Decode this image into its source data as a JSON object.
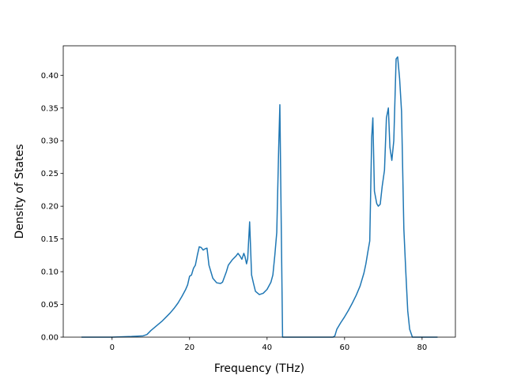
{
  "chart_data": {
    "type": "line",
    "title": "",
    "xlabel": "Frequency (THz)",
    "ylabel": "Density of States",
    "xlim": [
      -12.6,
      88.6
    ],
    "ylim": [
      0,
      0.445
    ],
    "xticks": [
      0,
      20,
      40,
      60,
      80
    ],
    "xtick_labels": [
      "0",
      "20",
      "40",
      "60",
      "80"
    ],
    "yticks": [
      0,
      0.05,
      0.1,
      0.15,
      0.2,
      0.25,
      0.3,
      0.35,
      0.4
    ],
    "ytick_labels": [
      "0.00",
      "0.05",
      "0.10",
      "0.15",
      "0.20",
      "0.25",
      "0.30",
      "0.35",
      "0.40"
    ],
    "grid": false,
    "legend": "none",
    "series": [
      {
        "color": "#1f77b4",
        "x": [
          -7.9,
          0,
          5,
          8,
          9,
          10,
          11,
          12,
          13,
          14,
          15,
          16,
          17,
          18,
          19,
          19.5,
          20,
          20.5,
          21,
          21.5,
          22,
          22.5,
          23,
          23.5,
          24,
          24.5,
          25,
          26,
          27,
          28,
          28.5,
          29,
          29.5,
          30,
          31,
          32,
          32.5,
          33,
          33.5,
          34,
          34.3,
          34.7,
          35,
          35.5,
          36,
          36.5,
          37,
          38,
          39,
          40,
          41,
          41.5,
          42,
          42.5,
          43,
          43.3,
          43.5,
          44,
          50,
          57,
          57.5,
          58,
          59,
          60,
          61,
          62,
          63,
          64,
          65,
          65.5,
          66,
          66.5,
          67,
          67.3,
          67.7,
          68.3,
          68.7,
          69.2,
          69.7,
          70.3,
          70.8,
          71.3,
          71.7,
          72.2,
          72.7,
          73.3,
          73.7,
          74.2,
          74.7,
          75.3,
          75.8,
          76.3,
          76.8,
          77.5,
          80,
          84
        ],
        "y": [
          0,
          0,
          0.001,
          0.002,
          0.004,
          0.01,
          0.015,
          0.02,
          0.025,
          0.031,
          0.037,
          0.044,
          0.052,
          0.062,
          0.073,
          0.08,
          0.093,
          0.095,
          0.105,
          0.11,
          0.125,
          0.138,
          0.137,
          0.133,
          0.135,
          0.136,
          0.11,
          0.09,
          0.083,
          0.082,
          0.084,
          0.092,
          0.1,
          0.11,
          0.118,
          0.124,
          0.128,
          0.124,
          0.119,
          0.128,
          0.123,
          0.112,
          0.12,
          0.176,
          0.095,
          0.082,
          0.07,
          0.065,
          0.067,
          0.073,
          0.084,
          0.095,
          0.125,
          0.16,
          0.29,
          0.355,
          0.25,
          0,
          0,
          0,
          0.002,
          0.012,
          0.022,
          0.031,
          0.041,
          0.052,
          0.064,
          0.078,
          0.098,
          0.112,
          0.13,
          0.147,
          0.305,
          0.335,
          0.223,
          0.204,
          0.2,
          0.203,
          0.23,
          0.255,
          0.335,
          0.35,
          0.29,
          0.27,
          0.3,
          0.425,
          0.428,
          0.395,
          0.345,
          0.165,
          0.1,
          0.04,
          0.012,
          0,
          0,
          0
        ]
      }
    ]
  }
}
